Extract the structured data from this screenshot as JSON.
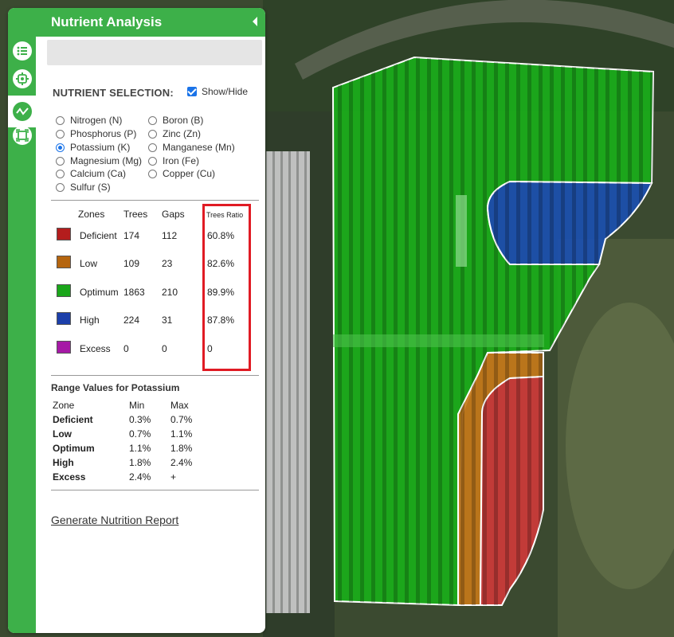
{
  "panel": {
    "title": "Nutrient Analysis",
    "search_placeholder": "",
    "rail_icons": [
      "list-icon",
      "gear-icon",
      "wave-icon",
      "scan-icon"
    ]
  },
  "selection": {
    "title": "NUTRIENT SELECTION:",
    "show_hide_label": "Show/Hide",
    "show_hide_checked": true,
    "options": [
      {
        "label": "Nitrogen (N)",
        "selected": false
      },
      {
        "label": "Phosphorus (P)",
        "selected": false
      },
      {
        "label": "Potassium (K)",
        "selected": true
      },
      {
        "label": "Magnesium (Mg)",
        "selected": false
      },
      {
        "label": "Calcium (Ca)",
        "selected": false
      },
      {
        "label": "Sulfur (S)",
        "selected": false
      },
      {
        "label": "Boron (B)",
        "selected": false
      },
      {
        "label": "Zinc (Zn)",
        "selected": false
      },
      {
        "label": "Manganese (Mn)",
        "selected": false
      },
      {
        "label": "Iron (Fe)",
        "selected": false
      },
      {
        "label": "Copper (Cu)",
        "selected": false
      }
    ]
  },
  "zones_table": {
    "headers": [
      "Zones",
      "Trees",
      "Gaps",
      "Trees Ratio"
    ],
    "rows": [
      {
        "zone": "Deficient",
        "trees": "174",
        "gaps": "112",
        "ratio": "60.8%",
        "color": "#b41d1d"
      },
      {
        "zone": "Low",
        "trees": "109",
        "gaps": "23",
        "ratio": "82.6%",
        "color": "#b5650f"
      },
      {
        "zone": "Optimum",
        "trees": "1863",
        "gaps": "210",
        "ratio": "89.9%",
        "color": "#1aa61a"
      },
      {
        "zone": "High",
        "trees": "224",
        "gaps": "31",
        "ratio": "87.8%",
        "color": "#1c3faa"
      },
      {
        "zone": "Excess",
        "trees": "0",
        "gaps": "0",
        "ratio": "0",
        "color": "#a619a6"
      }
    ]
  },
  "range": {
    "title": "Range Values for Potassium",
    "headers": [
      "Zone",
      "Min",
      "Max"
    ],
    "rows": [
      {
        "zone": "Deficient",
        "min": "0.3%",
        "max": "0.7%"
      },
      {
        "zone": "Low",
        "min": "0.7%",
        "max": "1.1%"
      },
      {
        "zone": "Optimum",
        "min": "1.1%",
        "max": "1.8%"
      },
      {
        "zone": "High",
        "min": "1.8%",
        "max": "2.4%"
      },
      {
        "zone": "Excess",
        "min": "2.4%",
        "max": "+"
      }
    ]
  },
  "report_link": "Generate Nutrition Report",
  "colors": {
    "accent": "#3db049",
    "highlight_box": "#e01b24"
  }
}
